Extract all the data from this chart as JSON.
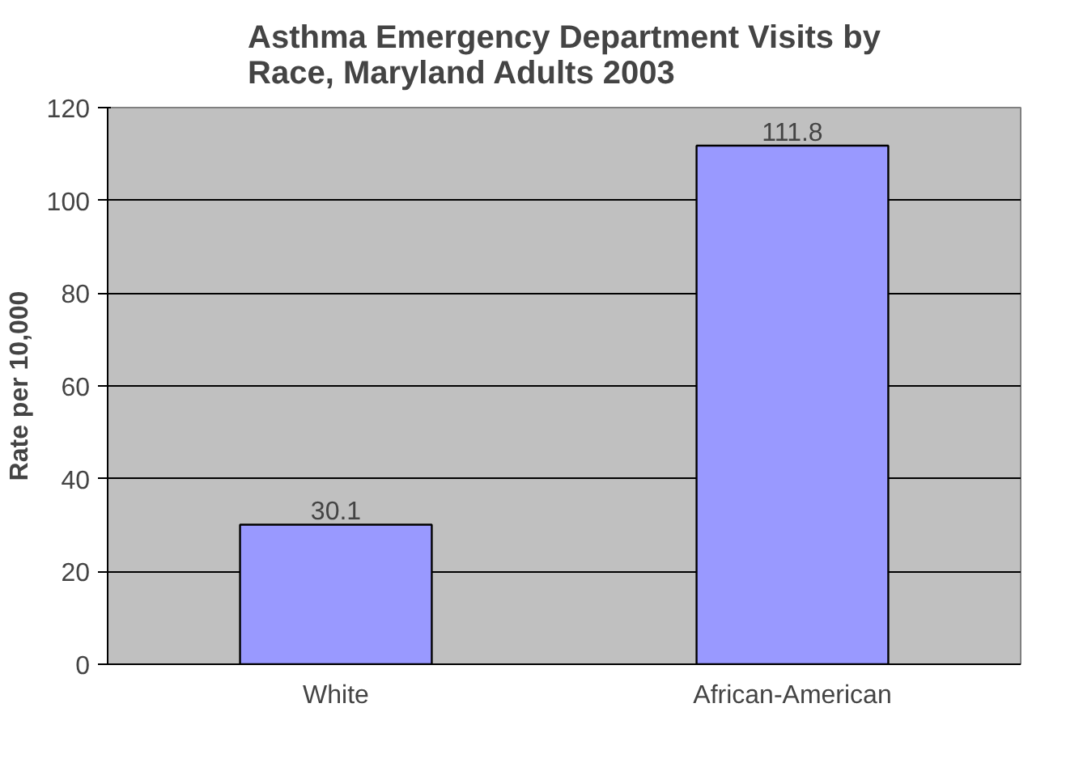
{
  "chart_data": {
    "type": "bar",
    "title": "Asthma Emergency Department Visits by Race, Maryland Adults 2003",
    "ylabel": "Rate per 10,000",
    "categories": [
      "White",
      "African-American"
    ],
    "values": [
      30.1,
      111.8
    ],
    "color": "#9999ff",
    "ylim": [
      0,
      120
    ],
    "yticks": [
      0,
      20,
      40,
      60,
      80,
      100,
      120
    ],
    "grid": "y",
    "data_labels": true
  }
}
